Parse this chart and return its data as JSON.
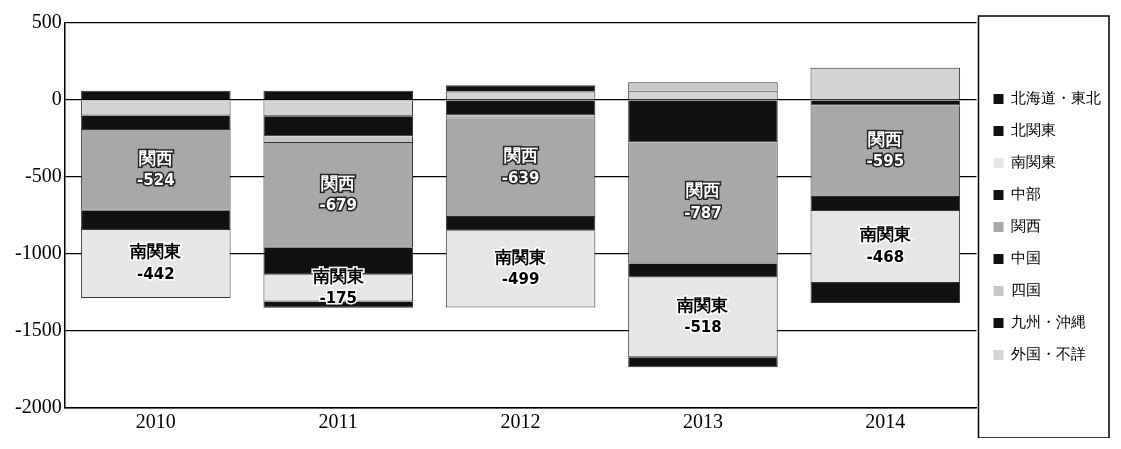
{
  "chart_data": {
    "type": "bar",
    "stacked": true,
    "categories": [
      "2010",
      "2011",
      "2012",
      "2013",
      "2014"
    ],
    "ylim": [
      -2000,
      500
    ],
    "yticks": [
      -2000,
      -1500,
      -1000,
      -500,
      0,
      500
    ],
    "grid": "y",
    "legend": "right",
    "series": [
      {
        "name": "外国・不詳",
        "color": "#d4d4d4",
        "values": [
          -100,
          -105,
          55,
          60,
          210
        ]
      },
      {
        "name": "九州・沖縄",
        "color": "#111111",
        "values": [
          -95,
          -130,
          -100,
          -275,
          -35
        ]
      },
      {
        "name": "四国",
        "color": "#c8c8c8",
        "values": [
          null,
          -45,
          -20,
          55,
          null
        ]
      },
      {
        "name": "中国",
        "color": "#111111",
        "values": [
          60,
          60,
          40,
          null,
          null
        ]
      },
      {
        "name": "関西",
        "color": "#a8a8a8",
        "values": [
          -524,
          -679,
          -639,
          -787,
          -595
        ],
        "value_labels": [
          "-524",
          "-679",
          "-639",
          "-787",
          "-595"
        ]
      },
      {
        "name": "中部",
        "color": "#111111",
        "values": [
          -125,
          -175,
          -90,
          -90,
          -90
        ]
      },
      {
        "name": "南関東",
        "color": "#e6e6e6",
        "values": [
          -442,
          -175,
          -499,
          -518,
          -468
        ],
        "value_labels": [
          "-442",
          "-175",
          "-499",
          "-518",
          "-468"
        ]
      },
      {
        "name": "北関東",
        "color": "#111111",
        "values": [
          null,
          -40,
          null,
          -65,
          -130
        ]
      },
      {
        "name": "北海道・東北",
        "color": "#111111",
        "values": [
          null,
          null,
          null,
          null,
          null
        ]
      }
    ]
  }
}
